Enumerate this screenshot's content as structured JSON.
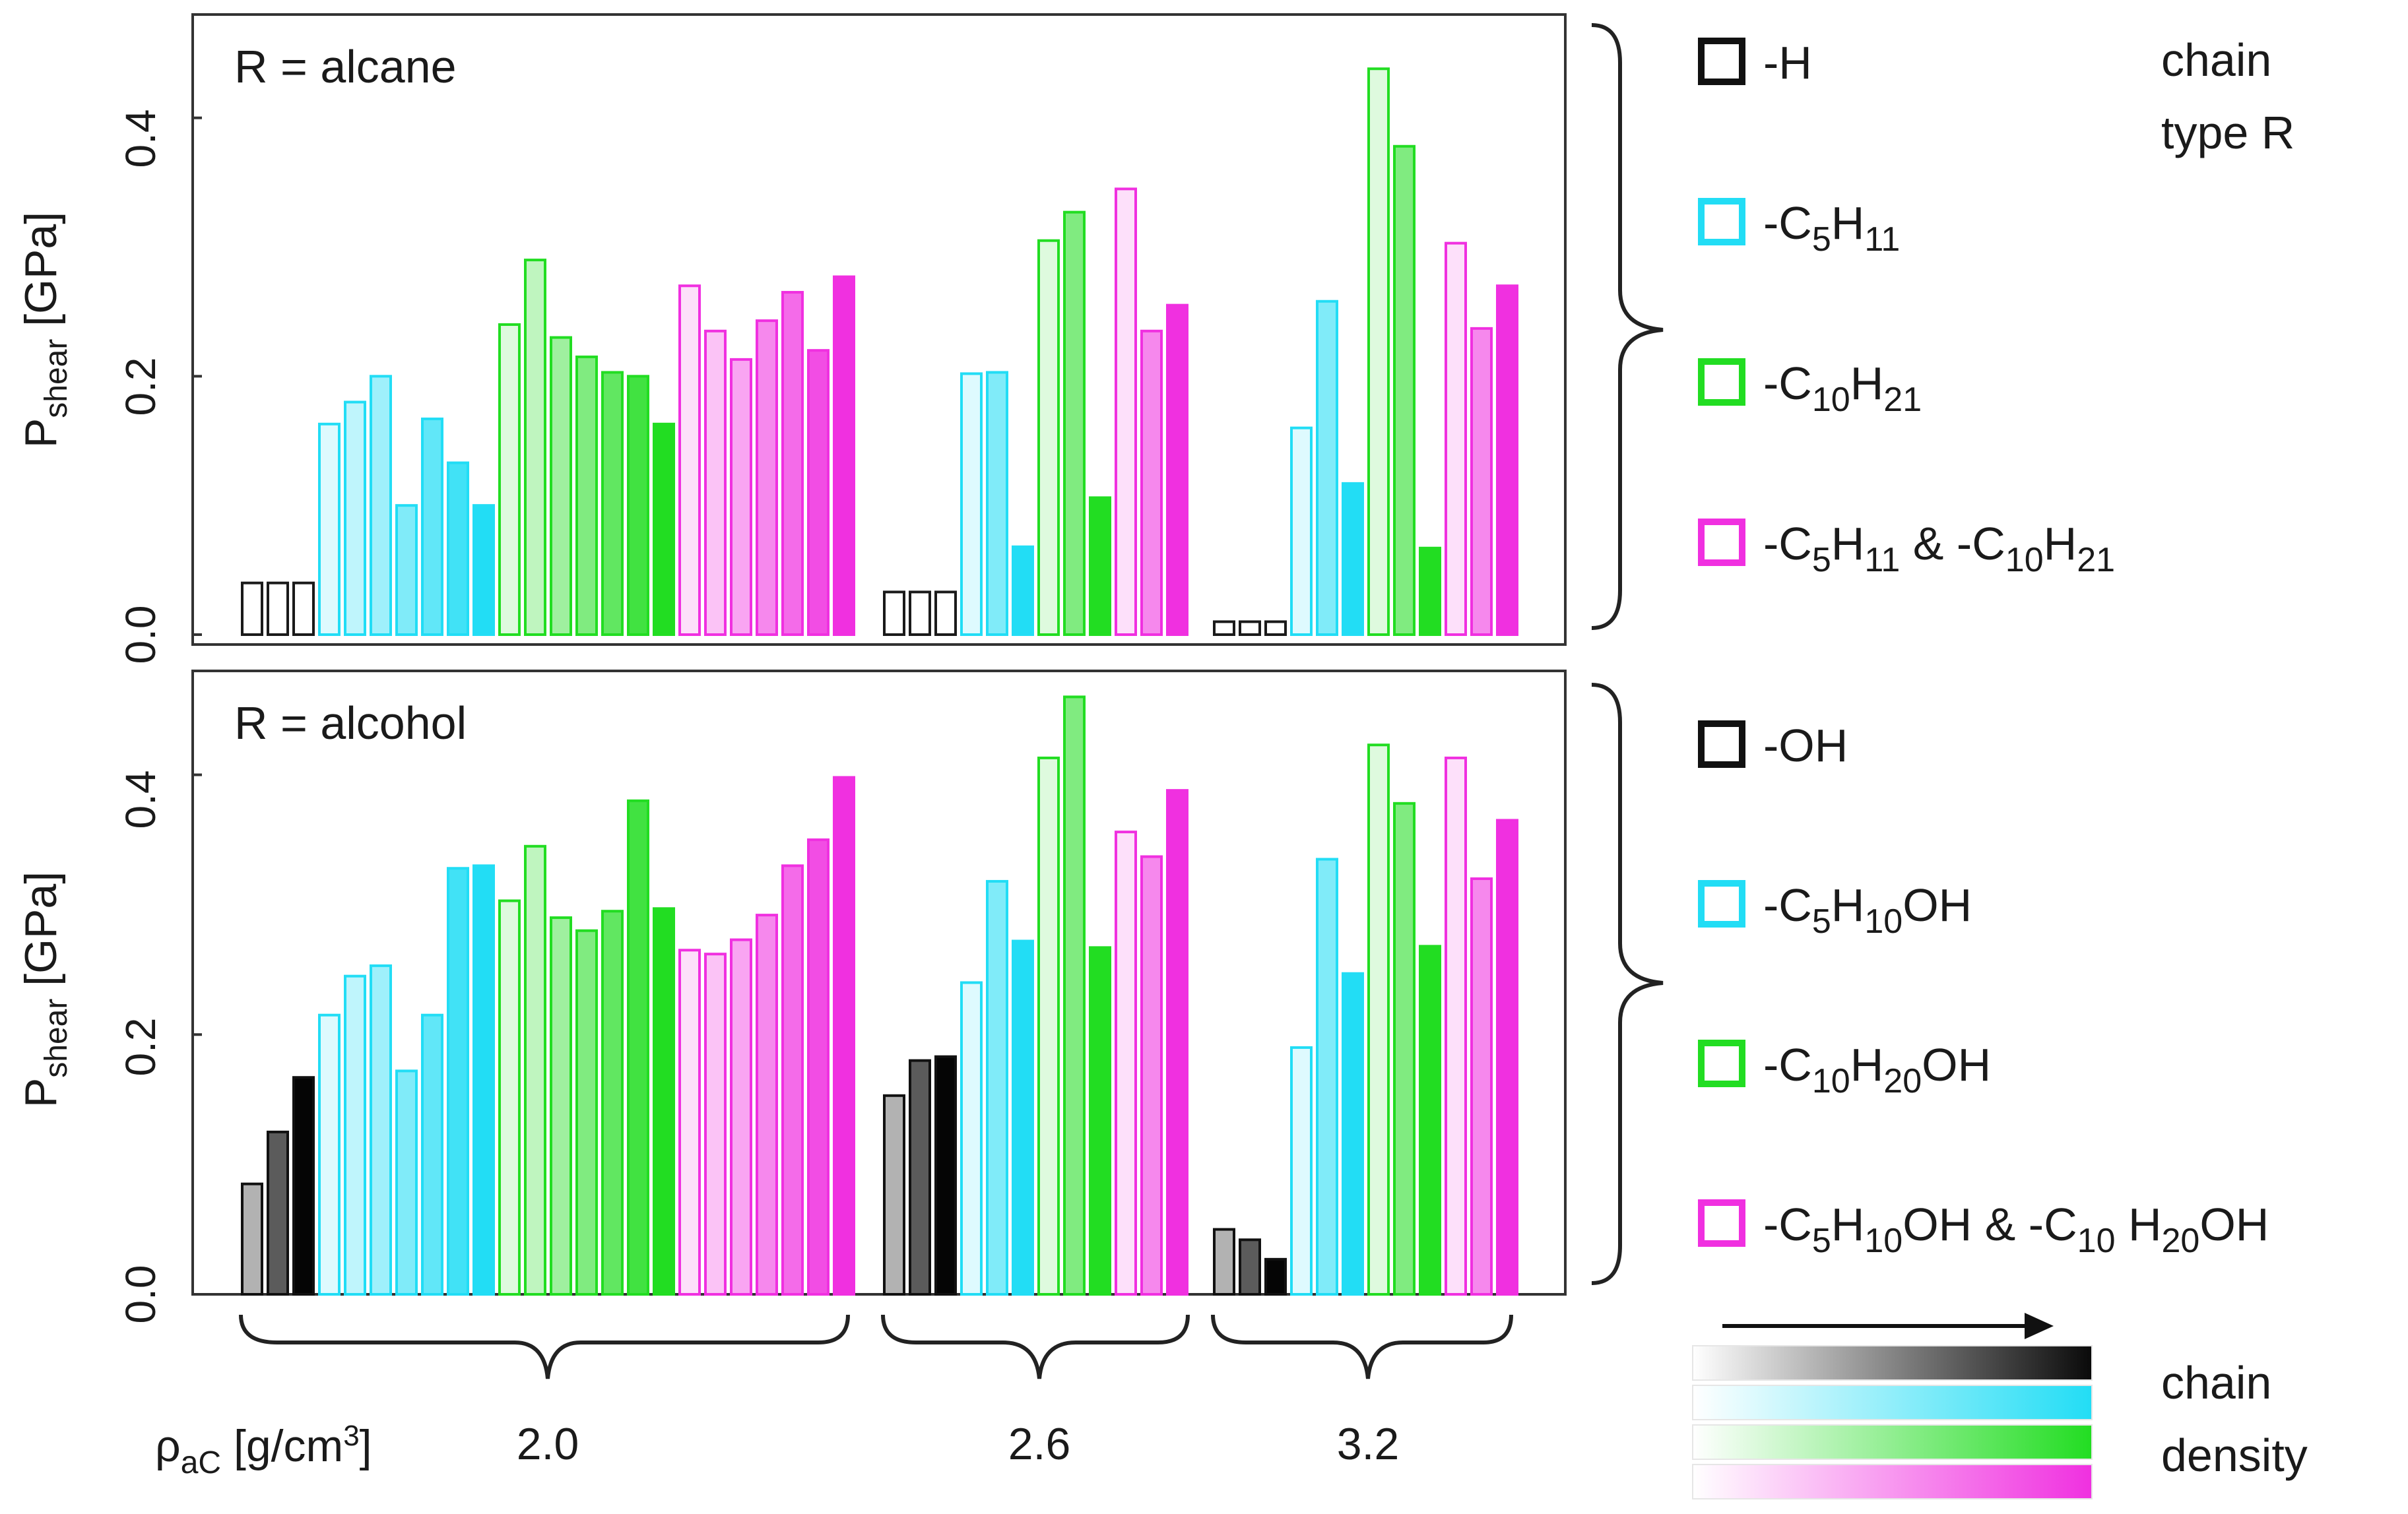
{
  "chart_data": [
    {
      "type": "bar",
      "panel": "top",
      "annotation": "R = alcane",
      "ylabel": "P",
      "ylabel_sub": "shear",
      "ylabel_unit": " [GPa]",
      "ylim": [
        0.0,
        0.48
      ],
      "yticks": [
        "0.0",
        "0.2",
        "0.4"
      ],
      "groups": [
        {
          "density": "2.0",
          "sets": [
            {
              "type": "H",
              "values": [
                0.04,
                0.04,
                0.04
              ]
            },
            {
              "type": "C5",
              "values": [
                0.163,
                0.18,
                0.2,
                0.1,
                0.167,
                0.133,
                0.1
              ]
            },
            {
              "type": "C10",
              "values": [
                0.24,
                0.29,
                0.23,
                0.215,
                0.203,
                0.2,
                0.163
              ]
            },
            {
              "type": "mix",
              "values": [
                0.27,
                0.235,
                0.213,
                0.243,
                0.265,
                0.22,
                0.277
              ]
            }
          ]
        },
        {
          "density": "2.6",
          "sets": [
            {
              "type": "H",
              "values": [
                0.033,
                0.033,
                0.033
              ]
            },
            {
              "type": "C5",
              "values": [
                0.202,
                0.203,
                0.068
              ]
            },
            {
              "type": "C10",
              "values": [
                0.305,
                0.327,
                0.106
              ]
            },
            {
              "type": "mix",
              "values": [
                0.345,
                0.235,
                0.255
              ]
            }
          ]
        },
        {
          "density": "3.2",
          "sets": [
            {
              "type": "H",
              "values": [
                0.01,
                0.01,
                0.01
              ]
            },
            {
              "type": "C5",
              "values": [
                0.16,
                0.258,
                0.117
              ]
            },
            {
              "type": "C10",
              "values": [
                0.438,
                0.378,
                0.067
              ]
            },
            {
              "type": "mix",
              "values": [
                0.303,
                0.237,
                0.27
              ]
            }
          ]
        }
      ]
    },
    {
      "type": "bar",
      "panel": "bottom",
      "annotation": "R = alcohol",
      "ylabel": "P",
      "ylabel_sub": "shear",
      "ylabel_unit": " [GPa]",
      "ylim": [
        0.0,
        0.48
      ],
      "yticks": [
        "0.0",
        "0.2",
        "0.4"
      ],
      "groups": [
        {
          "density": "2.0",
          "sets": [
            {
              "type": "H",
              "values": [
                0.085,
                0.125,
                0.167
              ]
            },
            {
              "type": "C5",
              "values": [
                0.215,
                0.245,
                0.253,
                0.172,
                0.215,
                0.328,
                0.33
              ]
            },
            {
              "type": "C10",
              "values": [
                0.303,
                0.345,
                0.29,
                0.28,
                0.295,
                0.38,
                0.297
              ]
            },
            {
              "type": "mix",
              "values": [
                0.265,
                0.262,
                0.273,
                0.292,
                0.33,
                0.35,
                0.398
              ]
            }
          ]
        },
        {
          "density": "2.6",
          "sets": [
            {
              "type": "H",
              "values": [
                0.153,
                0.18,
                0.183
              ]
            },
            {
              "type": "C5",
              "values": [
                0.24,
                0.318,
                0.272
              ]
            },
            {
              "type": "C10",
              "values": [
                0.413,
                0.46,
                0.267
              ]
            },
            {
              "type": "mix",
              "values": [
                0.356,
                0.337,
                0.388
              ]
            }
          ]
        },
        {
          "density": "3.2",
          "sets": [
            {
              "type": "H",
              "values": [
                0.05,
                0.042,
                0.027
              ]
            },
            {
              "type": "C5",
              "values": [
                0.19,
                0.335,
                0.247
              ]
            },
            {
              "type": "C10",
              "values": [
                0.423,
                0.378,
                0.268
              ]
            },
            {
              "type": "mix",
              "values": [
                0.413,
                0.32,
                0.365
              ]
            }
          ]
        }
      ]
    }
  ],
  "colors": {
    "H": "#222222",
    "C5": "#22ddf5",
    "C10": "#22dd22",
    "mix": "#f030e0"
  },
  "xaxis": {
    "label": "ρ",
    "label_sub": "aC",
    "label_unit": " [g/cm",
    "label_sup": "3",
    "label_close": "]"
  },
  "legend_top": {
    "title_line1": "chain",
    "title_line2": "type R",
    "items": [
      {
        "key": "H",
        "parts": [
          {
            "t": "-H"
          }
        ]
      },
      {
        "key": "C5",
        "parts": [
          {
            "t": "-C"
          },
          {
            "t": "5",
            "s": "sub"
          },
          {
            "t": "H"
          },
          {
            "t": "11",
            "s": "sub"
          }
        ]
      },
      {
        "key": "C10",
        "parts": [
          {
            "t": "-C"
          },
          {
            "t": "10",
            "s": "sub"
          },
          {
            "t": "H"
          },
          {
            "t": "21",
            "s": "sub"
          }
        ]
      },
      {
        "key": "mix",
        "parts": [
          {
            "t": "-C"
          },
          {
            "t": "5",
            "s": "sub"
          },
          {
            "t": "H"
          },
          {
            "t": "11",
            "s": "sub"
          },
          {
            "t": "  &  -C"
          },
          {
            "t": "10",
            "s": "sub"
          },
          {
            "t": "H"
          },
          {
            "t": "21",
            "s": "sub"
          }
        ]
      }
    ]
  },
  "legend_bottom": {
    "items": [
      {
        "key": "H",
        "parts": [
          {
            "t": "-OH"
          }
        ]
      },
      {
        "key": "C5",
        "parts": [
          {
            "t": "-C"
          },
          {
            "t": "5",
            "s": "sub"
          },
          {
            "t": "H"
          },
          {
            "t": "10",
            "s": "sub"
          },
          {
            "t": "OH"
          }
        ]
      },
      {
        "key": "C10",
        "parts": [
          {
            "t": "-C"
          },
          {
            "t": "10",
            "s": "sub"
          },
          {
            "t": "H"
          },
          {
            "t": "20",
            "s": "sub"
          },
          {
            "t": "OH"
          }
        ]
      },
      {
        "key": "mix",
        "parts": [
          {
            "t": "-C"
          },
          {
            "t": "5",
            "s": "sub"
          },
          {
            "t": "H"
          },
          {
            "t": "10",
            "s": "sub"
          },
          {
            "t": "OH   &  -C"
          },
          {
            "t": "10",
            "s": "sub"
          },
          {
            "t": " H"
          },
          {
            "t": "20",
            "s": "sub"
          },
          {
            "t": "OH"
          }
        ]
      }
    ]
  },
  "gradient_legend": {
    "label_line1": "chain",
    "label_line2": "density"
  }
}
